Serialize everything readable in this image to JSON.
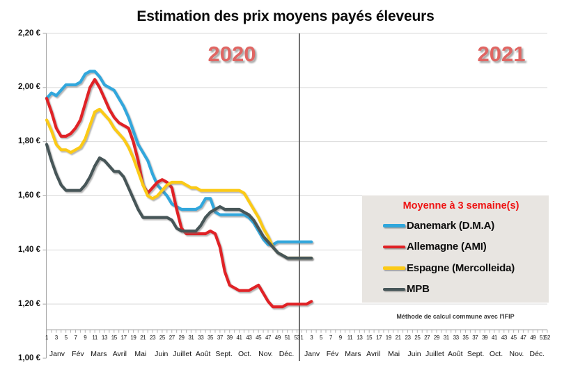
{
  "chart_data": {
    "type": "line",
    "title": "Estimation des prix moyens payés éleveurs",
    "legend_title": "Moyenne à  3 semaine(s)",
    "footnote": "Méthode de calcul commune avec l'IFIP",
    "ylim": [
      1.0,
      2.2
    ],
    "ytick_step": 0.2,
    "y_tick_labels": [
      "2,20 €",
      "2,00 €",
      "1,80 €",
      "1,60 €",
      "1,40 €",
      "1,20 €",
      "1,00 €"
    ],
    "grid": "horizontal",
    "divider_between_years": true,
    "years": [
      {
        "label": "2020",
        "weeks": 53,
        "week_tick_labels": [
          "1",
          "3",
          "5",
          "7",
          "9",
          "11",
          "13",
          "15",
          "17",
          "19",
          "21",
          "23",
          "25",
          "27",
          "29",
          "31",
          "33",
          "35",
          "37",
          "39",
          "41",
          "43",
          "45",
          "47",
          "49",
          "51",
          "53"
        ],
        "months": [
          "Janv",
          "Fév",
          "Mars",
          "Avril",
          "Mai",
          "Juin",
          "Juillet",
          "Août",
          "Sept.",
          "Oct.",
          "Nov.",
          "Déc."
        ]
      },
      {
        "label": "2021",
        "weeks": 52,
        "week_tick_labels": [
          "1",
          "3",
          "5",
          "7",
          "9",
          "11",
          "13",
          "15",
          "17",
          "19",
          "21",
          "23",
          "25",
          "27",
          "29",
          "31",
          "33",
          "35",
          "37",
          "39",
          "41",
          "43",
          "45",
          "47",
          "49",
          "51",
          "52"
        ],
        "months": [
          "Janv",
          "Fév",
          "Mars",
          "Avril",
          "Mai",
          "Juin",
          "Juillet",
          "Août",
          "Sept.",
          "Oct.",
          "Nov.",
          "Déc."
        ]
      }
    ],
    "x_unit": "week",
    "series": [
      {
        "name": "Danemark (D.M.A)",
        "color": "#30a7dc",
        "values": [
          [
            1.96,
            1.98,
            1.97,
            1.99,
            2.01,
            2.01,
            2.01,
            2.02,
            2.05,
            2.06,
            2.06,
            2.04,
            2.01,
            2.0,
            1.99,
            1.96,
            1.93,
            1.89,
            1.84,
            1.79,
            1.76,
            1.73,
            1.68,
            1.64,
            1.62,
            1.6,
            1.57,
            1.56,
            1.55,
            1.55,
            1.55,
            1.55,
            1.56,
            1.59,
            1.59,
            1.54,
            1.53,
            1.53,
            1.53,
            1.53,
            1.53,
            1.53,
            1.52,
            1.5,
            1.47,
            1.44,
            1.42,
            1.42,
            1.43,
            1.43,
            1.43,
            1.43,
            1.43
          ],
          [
            1.43,
            1.43,
            1.43
          ]
        ]
      },
      {
        "name": "Allemagne (AMI)",
        "color": "#e02125",
        "values": [
          [
            1.96,
            1.91,
            1.85,
            1.82,
            1.82,
            1.83,
            1.85,
            1.88,
            1.94,
            2.0,
            2.03,
            2.0,
            1.96,
            1.92,
            1.89,
            1.87,
            1.86,
            1.85,
            1.8,
            1.73,
            1.64,
            1.61,
            1.63,
            1.65,
            1.66,
            1.65,
            1.63,
            1.55,
            1.48,
            1.46,
            1.46,
            1.46,
            1.46,
            1.46,
            1.47,
            1.46,
            1.41,
            1.32,
            1.27,
            1.26,
            1.25,
            1.25,
            1.25,
            1.26,
            1.27,
            1.24,
            1.21,
            1.19,
            1.19,
            1.19,
            1.2,
            1.2,
            1.2
          ],
          [
            1.2,
            1.2,
            1.21
          ]
        ]
      },
      {
        "name": "Espagne (Mercolleida)",
        "color": "#fbca18",
        "values": [
          [
            1.88,
            1.84,
            1.79,
            1.77,
            1.77,
            1.76,
            1.77,
            1.78,
            1.81,
            1.86,
            1.91,
            1.92,
            1.9,
            1.88,
            1.85,
            1.83,
            1.81,
            1.78,
            1.74,
            1.69,
            1.64,
            1.6,
            1.59,
            1.6,
            1.62,
            1.64,
            1.65,
            1.65,
            1.65,
            1.64,
            1.63,
            1.63,
            1.62,
            1.62,
            1.62,
            1.62,
            1.62,
            1.62,
            1.62,
            1.62,
            1.62,
            1.61,
            1.58,
            1.55,
            1.52,
            1.48,
            1.45,
            1.41,
            1.39,
            1.38,
            1.37,
            1.37,
            1.37
          ],
          [
            1.37,
            1.37,
            1.37
          ]
        ]
      },
      {
        "name": "MPB",
        "color": "#475659",
        "values": [
          [
            1.79,
            1.73,
            1.68,
            1.64,
            1.62,
            1.62,
            1.62,
            1.62,
            1.64,
            1.67,
            1.71,
            1.74,
            1.73,
            1.71,
            1.69,
            1.69,
            1.67,
            1.63,
            1.59,
            1.55,
            1.52,
            1.52,
            1.52,
            1.52,
            1.52,
            1.52,
            1.51,
            1.48,
            1.47,
            1.47,
            1.47,
            1.47,
            1.49,
            1.52,
            1.54,
            1.55,
            1.56,
            1.55,
            1.55,
            1.55,
            1.55,
            1.54,
            1.53,
            1.51,
            1.48,
            1.45,
            1.43,
            1.41,
            1.39,
            1.38,
            1.37,
            1.37,
            1.37
          ],
          [
            1.37,
            1.37,
            1.37
          ]
        ]
      }
    ]
  }
}
